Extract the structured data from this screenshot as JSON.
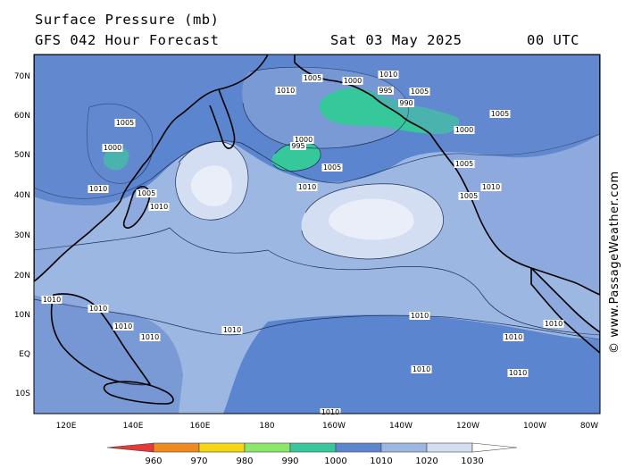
{
  "header": {
    "title": "Surface Pressure (mb)",
    "subtitle": "GFS 042 Hour Forecast",
    "date": "Sat 03 May 2025",
    "time": "00 UTC"
  },
  "watermark": "© www.PassageWeather.com",
  "lat_labels": [
    "70N",
    "60N",
    "50N",
    "40N",
    "30N",
    "20N",
    "10N",
    "EQ",
    "10S"
  ],
  "lon_labels": [
    "120E",
    "140E",
    "160E",
    "180",
    "160W",
    "140W",
    "120W",
    "100W",
    "80W"
  ],
  "legend": {
    "ticks": [
      "960",
      "970",
      "980",
      "990",
      "1000",
      "1010",
      "1020",
      "1030"
    ],
    "colors": [
      "#e8393a",
      "#f08a1e",
      "#f5d515",
      "#8be86a",
      "#36c79a",
      "#5b86cf",
      "#9db7e3",
      "#d4def2",
      "#ffffff"
    ]
  },
  "map_colors": {
    "ocean": "#9db7e3",
    "band_1010": "#5b86cf",
    "band_1000": "#36c79a",
    "high_1020": "#d4def2",
    "high_1030": "#e9eef8",
    "land_line": "#000000",
    "frame": "#000000"
  },
  "isobar_labels": [
    {
      "text": "1005"
    },
    {
      "text": "1010"
    },
    {
      "text": "1000"
    },
    {
      "text": "995"
    },
    {
      "text": "990"
    },
    {
      "text": "1005"
    },
    {
      "text": "1010"
    },
    {
      "text": "1000"
    },
    {
      "text": "1005"
    },
    {
      "text": "995"
    },
    {
      "text": "1010"
    },
    {
      "text": "1005"
    },
    {
      "text": "1000"
    },
    {
      "text": "1010"
    },
    {
      "text": "1005"
    },
    {
      "text": "1010"
    },
    {
      "text": "1010"
    },
    {
      "text": "1010"
    },
    {
      "text": "1010"
    },
    {
      "text": "1010"
    },
    {
      "text": "1010"
    },
    {
      "text": "1010"
    },
    {
      "text": "1010"
    },
    {
      "text": "1010"
    },
    {
      "text": "1010"
    },
    {
      "text": "1010"
    },
    {
      "text": "1010"
    },
    {
      "text": "1005"
    },
    {
      "text": "1010"
    },
    {
      "text": "1005"
    },
    {
      "text": "1000"
    },
    {
      "text": "1005"
    }
  ]
}
